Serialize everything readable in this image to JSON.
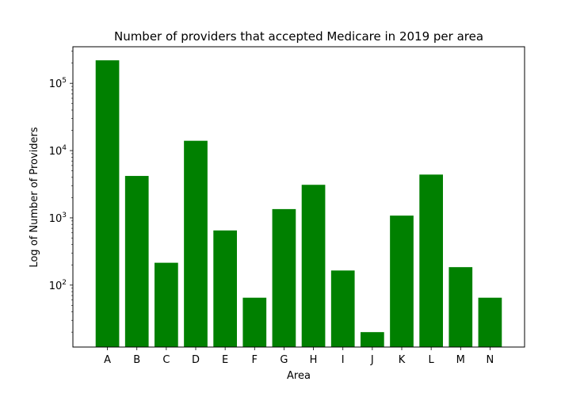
{
  "chart_data": {
    "type": "bar",
    "title": "Number of providers that accepted Medicare in 2019 per area",
    "xlabel": "Area",
    "ylabel": "Log of Number of Providers",
    "yscale": "log",
    "ylim": [
      12,
      350000
    ],
    "grid": false,
    "bar_color": "#008000",
    "categories": [
      "A",
      "B",
      "C",
      "D",
      "E",
      "F",
      "G",
      "H",
      "I",
      "J",
      "K",
      "L",
      "M",
      "N"
    ],
    "values": [
      220000,
      4200,
      215,
      14000,
      650,
      65,
      1350,
      3100,
      165,
      20,
      1080,
      4400,
      185,
      65
    ],
    "y_ticks": [
      {
        "value": 100,
        "base": "10",
        "exp": "2"
      },
      {
        "value": 1000,
        "base": "10",
        "exp": "3"
      },
      {
        "value": 10000,
        "base": "10",
        "exp": "4"
      },
      {
        "value": 100000,
        "base": "10",
        "exp": "5"
      }
    ]
  }
}
